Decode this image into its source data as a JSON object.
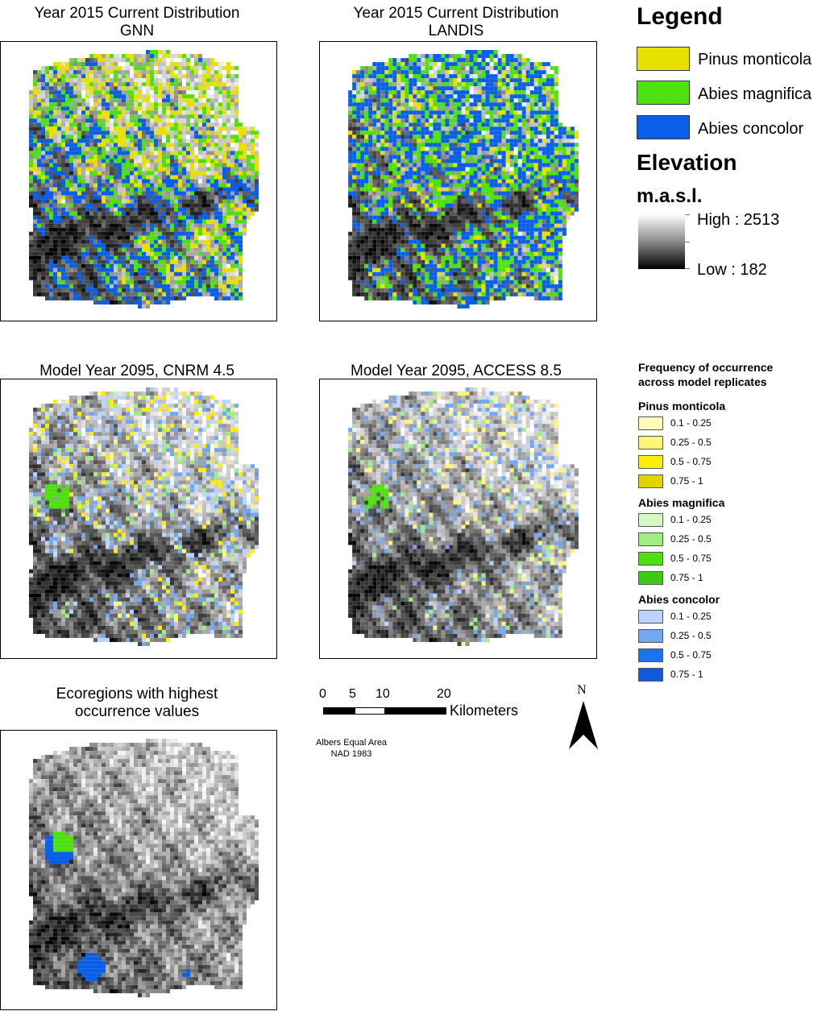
{
  "panels": [
    {
      "title": "Year 2015 Current Distribution\nGNN"
    },
    {
      "title": "Year 2015 Current Distribution\nLANDIS"
    },
    {
      "title": "Model Year 2095, CNRM 4.5"
    },
    {
      "title": "Model Year 2095, ACCESS 8.5"
    },
    {
      "title": "Ecoregions with highest\noccurrence values"
    }
  ],
  "legend": {
    "title": "Legend",
    "species": [
      {
        "label": "Pinus monticola",
        "color": "#e8e000"
      },
      {
        "label": "Abies magnifica",
        "color": "#4fe010"
      },
      {
        "label": "Abies concolor",
        "color": "#0a5fe8"
      }
    ],
    "elevation_title": "Elevation",
    "elevation_unit": "m.a.s.l.",
    "high_label": "High : 2513",
    "low_label": "Low : 182"
  },
  "frequency": {
    "title": "Frequency of occurrence\nacross model replicates",
    "groups": [
      {
        "name": "Pinus monticola",
        "classes": [
          {
            "label": "0.1 - 0.25",
            "color": "#fffbb8"
          },
          {
            "label": "0.25 - 0.5",
            "color": "#fff57a"
          },
          {
            "label": "0.5 - 0.75",
            "color": "#ffee00"
          },
          {
            "label": "0.75 - 1",
            "color": "#e3d400"
          }
        ]
      },
      {
        "name": "Abies magnifica",
        "classes": [
          {
            "label": "0.1 - 0.25",
            "color": "#d6f8c4"
          },
          {
            "label": "0.25 - 0.5",
            "color": "#9cef80"
          },
          {
            "label": "0.5 - 0.75",
            "color": "#4fe010"
          },
          {
            "label": "0.75 - 1",
            "color": "#3ccb14"
          }
        ]
      },
      {
        "name": "Abies concolor",
        "classes": [
          {
            "label": "0.1 - 0.25",
            "color": "#bcd3fb"
          },
          {
            "label": "0.25 - 0.5",
            "color": "#72a7f2"
          },
          {
            "label": "0.5 - 0.75",
            "color": "#1a74ee"
          },
          {
            "label": "0.75 - 1",
            "color": "#1159dc"
          }
        ]
      }
    ]
  },
  "scale": {
    "ticks": [
      "0",
      "5",
      "10",
      "20"
    ],
    "units": "Kilometers"
  },
  "north_label": "N",
  "projection": "Albers Equal Area\nNAD 1983"
}
